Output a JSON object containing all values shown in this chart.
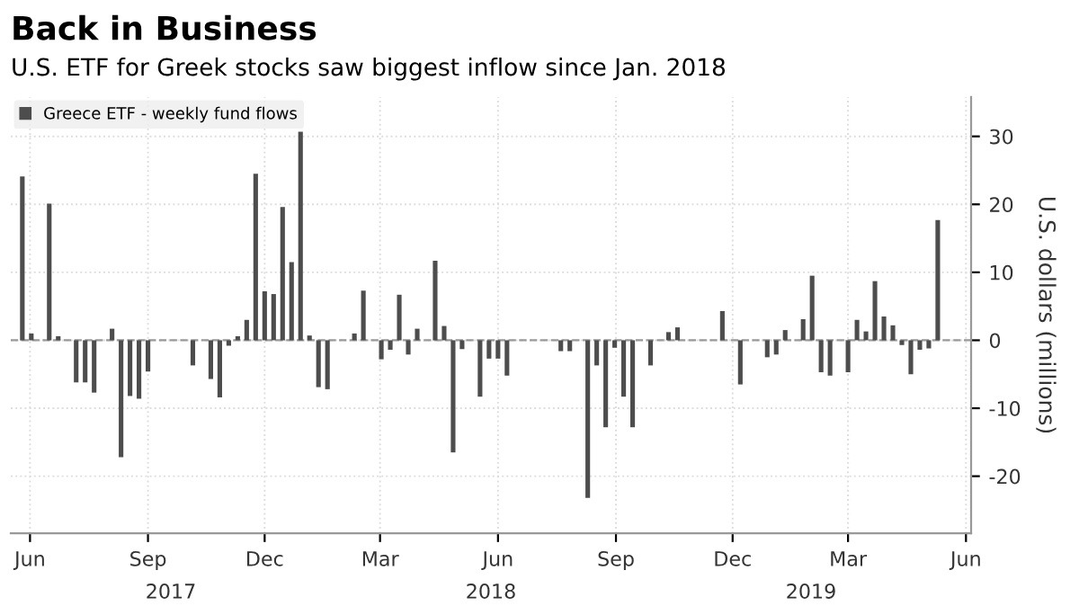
{
  "chart_data": {
    "type": "bar",
    "title": "Back in Business",
    "subtitle": "U.S. ETF for Greek stocks saw biggest inflow since Jan. 2018",
    "ylabel": "U.S. dollars (millions)",
    "x": [
      "2017-05-26",
      "2017-06-02",
      "2017-06-16",
      "2017-06-23",
      "2017-07-07",
      "2017-07-14",
      "2017-07-21",
      "2017-08-04",
      "2017-08-11",
      "2017-08-18",
      "2017-08-25",
      "2017-09-01",
      "2017-10-06",
      "2017-10-20",
      "2017-10-27",
      "2017-11-03",
      "2017-11-10",
      "2017-11-17",
      "2017-11-24",
      "2017-12-01",
      "2017-12-08",
      "2017-12-15",
      "2017-12-22",
      "2017-12-29",
      "2018-01-05",
      "2018-01-12",
      "2018-01-19",
      "2018-02-09",
      "2018-02-16",
      "2018-03-02",
      "2018-03-09",
      "2018-03-16",
      "2018-03-23",
      "2018-03-30",
      "2018-04-13",
      "2018-04-20",
      "2018-04-27",
      "2018-05-04",
      "2018-05-18",
      "2018-05-25",
      "2018-06-01",
      "2018-06-08",
      "2018-07-20",
      "2018-07-27",
      "2018-08-10",
      "2018-08-17",
      "2018-08-24",
      "2018-08-31",
      "2018-09-07",
      "2018-09-14",
      "2018-09-28",
      "2018-10-12",
      "2018-10-19",
      "2018-11-23",
      "2018-12-07",
      "2018-12-28",
      "2019-01-04",
      "2019-01-11",
      "2019-01-25",
      "2019-02-01",
      "2019-02-08",
      "2019-02-15",
      "2019-03-01",
      "2019-03-08",
      "2019-03-15",
      "2019-03-22",
      "2019-03-29",
      "2019-04-05",
      "2019-04-12",
      "2019-04-19",
      "2019-04-26",
      "2019-05-03",
      "2019-05-10"
    ],
    "series": [
      {
        "name": "Greece ETF - weekly fund flows",
        "color": "#4d4d4d",
        "values": [
          24.1,
          1.0,
          20.1,
          0.6,
          -6.2,
          -6.2,
          -7.7,
          1.7,
          -17.2,
          -8.2,
          -8.6,
          -4.6,
          -3.7,
          -5.7,
          -8.4,
          -0.8,
          0.6,
          3.0,
          24.5,
          7.2,
          6.8,
          19.6,
          11.5,
          30.7,
          0.7,
          -6.9,
          -7.2,
          1.0,
          7.3,
          -2.8,
          -1.4,
          6.7,
          -2.1,
          1.7,
          11.7,
          2.1,
          -16.5,
          -1.3,
          -8.3,
          -2.7,
          -2.7,
          -5.2,
          -1.6,
          -1.6,
          -23.2,
          -3.7,
          -12.8,
          -1.1,
          -8.3,
          -12.8,
          -3.7,
          1.2,
          1.9,
          4.3,
          -6.5,
          -2.5,
          -2.1,
          1.5,
          3.1,
          9.5,
          -4.7,
          -5.2,
          -4.7,
          3.0,
          1.3,
          8.7,
          3.5,
          2.2,
          -0.7,
          -5.0,
          -1.4,
          -1.2,
          17.7
        ]
      }
    ],
    "xlim": [
      "2017-05-17",
      "2019-06-05"
    ],
    "xticks": [
      {
        "value": "2017-06-01",
        "label": "Jun"
      },
      {
        "value": "2017-09-01",
        "label": "Sep"
      },
      {
        "value": "2017-12-01",
        "label": "Dec"
      },
      {
        "value": "2018-03-01",
        "label": "Mar"
      },
      {
        "value": "2018-06-01",
        "label": "Jun"
      },
      {
        "value": "2018-09-01",
        "label": "Sep"
      },
      {
        "value": "2018-12-01",
        "label": "Dec"
      },
      {
        "value": "2019-03-01",
        "label": "Mar"
      },
      {
        "value": "2019-06-01",
        "label": "Jun"
      }
    ],
    "ylim": [
      -28.4,
      35.8
    ],
    "yticks": [
      -20,
      -10,
      0,
      10,
      20,
      30
    ],
    "annotations": [
      "2017",
      "2018",
      "2019"
    ],
    "ref_lines": [
      {
        "axis": "y",
        "value": 0,
        "color": "#999999",
        "line_style": "dashed"
      }
    ],
    "grid": true,
    "legend": "top left"
  }
}
